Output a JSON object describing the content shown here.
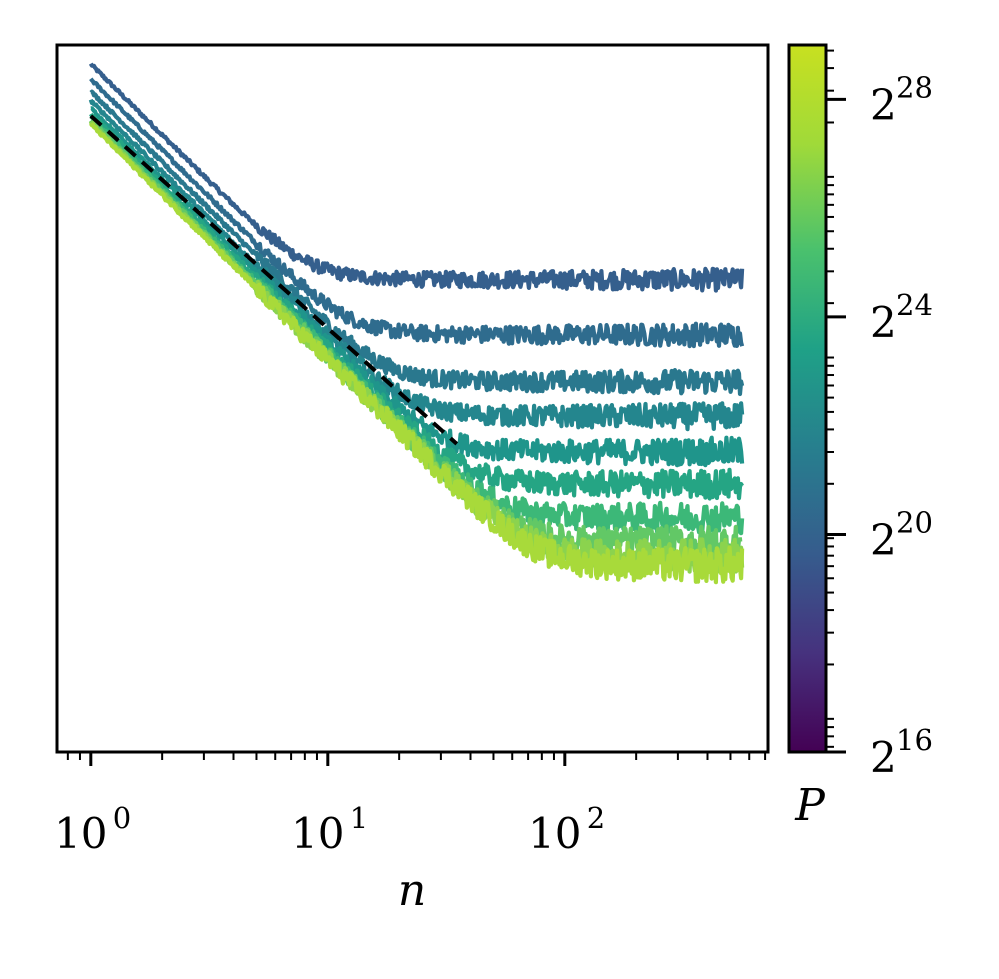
{
  "chart_data": {
    "type": "line",
    "xlabel": "n",
    "xscale": "log",
    "xlim": [
      0.72,
      720
    ],
    "yscale": "log",
    "ylim": [
      0.001,
      1
    ],
    "x_ticks": [
      {
        "value": 1,
        "base": "10",
        "exp": "0"
      },
      {
        "value": 10,
        "base": "10",
        "exp": "1"
      },
      {
        "value": 100,
        "base": "10",
        "exp": "2"
      }
    ],
    "y_tick_labels": "none",
    "reference_line": {
      "style": "dashed",
      "color": "#000000",
      "x": [
        1,
        35
      ],
      "y": [
        0.5,
        0.0203
      ]
    },
    "colorbar": {
      "label": "P",
      "scale": "log2",
      "range": [
        65536,
        536870912
      ],
      "ticks": [
        {
          "value": 65536,
          "base": "2",
          "exp": "16"
        },
        {
          "value": 1048576,
          "base": "2",
          "exp": "20"
        },
        {
          "value": 16777216,
          "base": "2",
          "exp": "24"
        },
        {
          "value": 268435456,
          "base": "2",
          "exp": "28"
        }
      ],
      "colors": [
        "#440154",
        "#46327e",
        "#365c8d",
        "#277f8e",
        "#1fa187",
        "#4ac16d",
        "#a0da39",
        "#c8e020"
      ]
    },
    "series": [
      {
        "P_exp": 19.8,
        "color": "#355f8d",
        "start": 0.83,
        "plateau": 0.101,
        "knee": 28
      },
      {
        "P_exp": 20.8,
        "color": "#2f6c8e",
        "start": 0.716,
        "plateau": 0.059,
        "knee": 36
      },
      {
        "P_exp": 21.8,
        "color": "#2a788e",
        "start": 0.636,
        "plateau": 0.0373,
        "knee": 45
      },
      {
        "P_exp": 22.8,
        "color": "#24868e",
        "start": 0.58,
        "plateau": 0.0266,
        "knee": 52
      },
      {
        "P_exp": 23.8,
        "color": "#1f958b",
        "start": 0.54,
        "plateau": 0.0188,
        "knee": 60
      },
      {
        "P_exp": 24.8,
        "color": "#25a584",
        "start": 0.512,
        "plateau": 0.0137,
        "knee": 70
      },
      {
        "P_exp": 25.8,
        "color": "#3cb878",
        "start": 0.492,
        "plateau": 0.0099,
        "knee": 80
      },
      {
        "P_exp": 26.6,
        "color": "#62c866",
        "start": 0.479,
        "plateau": 0.0078,
        "knee": 88
      },
      {
        "P_exp": 27.3,
        "color": "#8bd34e",
        "start": 0.469,
        "plateau": 0.0068,
        "knee": 95
      },
      {
        "P_exp": 27.8,
        "color": "#a8da3a",
        "start": 0.462,
        "plateau": 0.0062,
        "knee": 100
      }
    ]
  }
}
